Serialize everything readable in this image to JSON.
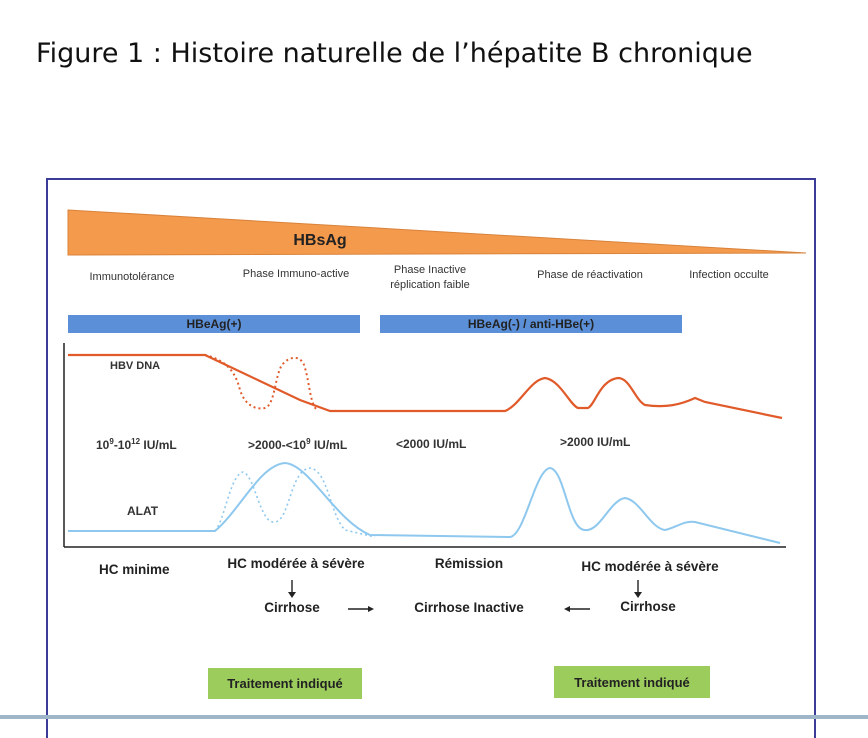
{
  "title": "Figure 1 : Histoire naturelle de l’hépatite B chronique",
  "hbsag": {
    "label": "HBsAg",
    "color": "#f39a4c"
  },
  "phases": [
    {
      "label": "Immunotolérance"
    },
    {
      "label": "Phase Immuno-active"
    },
    {
      "label": "Phase Inactive\nréplication faible"
    },
    {
      "label": "Phase de réactivation"
    },
    {
      "label": "Infection occulte"
    }
  ],
  "hbeag_bars": [
    {
      "label": "HBeAg(+)",
      "color": "#5b8fd8"
    },
    {
      "label": "HBeAg(-) / anti-HBe(+)",
      "color": "#5b8fd8"
    }
  ],
  "curves": {
    "hbv_dna": {
      "label": "HBV DNA",
      "color": "#e05a2a"
    },
    "alat": {
      "label": "ALAT",
      "color": "#8ec8ee"
    }
  },
  "viral_loads": [
    {
      "base": "10",
      "sup1": "9",
      "mid": "-10",
      "sup2": "12",
      "unit": " IU/mL"
    },
    {
      "base": ">2000-<10",
      "sup1": "9",
      "mid": "",
      "sup2": "",
      "unit": " IU/mL"
    },
    {
      "base": "<2000 IU/mL",
      "sup1": "",
      "mid": "",
      "sup2": "",
      "unit": ""
    },
    {
      "base": ">2000 IU/mL",
      "sup1": "",
      "mid": "",
      "sup2": "",
      "unit": ""
    }
  ],
  "histology": {
    "hc_minime": "HC minime",
    "hc_moderee_1": "HC modérée à sévère",
    "remission": "Rémission",
    "hc_moderee_2": "HC modérée à sévère",
    "cirrhose_1": "Cirrhose",
    "cirrhose_inactive": "Cirrhose Inactive",
    "cirrhose_2": "Cirrhose"
  },
  "treatment": [
    {
      "label": "Traitement  indiqué",
      "color": "#9ccc5c"
    },
    {
      "label": "Traitement  indiqué",
      "color": "#9ccc5c"
    }
  ]
}
